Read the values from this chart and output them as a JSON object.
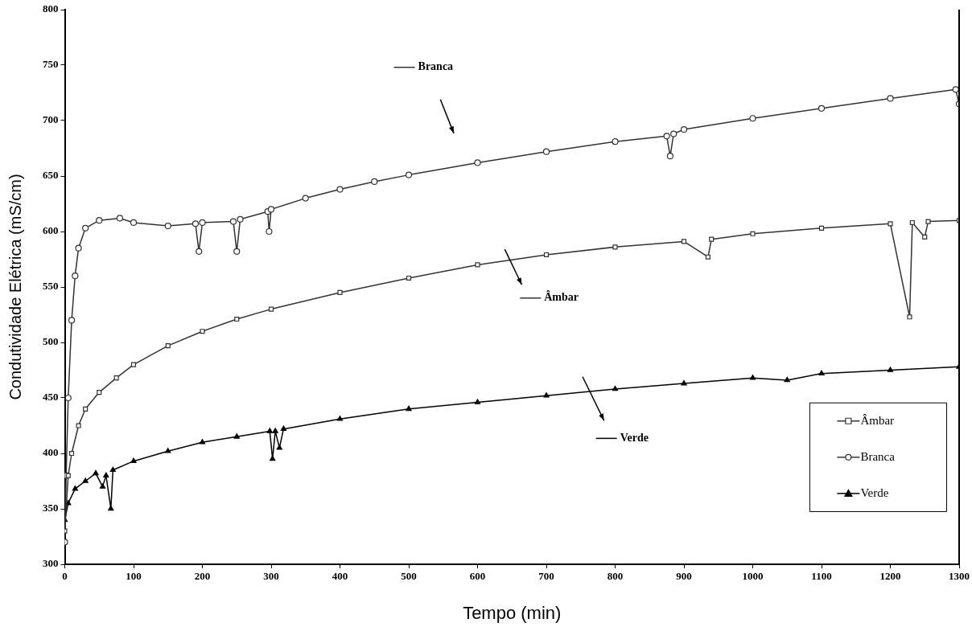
{
  "chart_data": {
    "type": "line",
    "xlabel": "Tempo (min)",
    "ylabel": "Condutividade Elétrica (mS/cm)",
    "xlim": [
      0,
      1300
    ],
    "xticks": [
      0,
      100,
      200,
      300,
      400,
      500,
      600,
      700,
      800,
      900,
      1000,
      1100,
      1200,
      1300
    ],
    "ylim": [
      300,
      800
    ],
    "yticks": [
      300,
      350,
      400,
      450,
      500,
      550,
      600,
      650,
      700,
      750,
      800
    ],
    "grid": false,
    "legend": "bottom right",
    "line_style": "solid",
    "series": [
      {
        "name": "Âmbar",
        "color": "#333333",
        "marker": "square",
        "x": [
          0,
          5,
          10,
          20,
          30,
          50,
          75,
          100,
          150,
          200,
          250,
          300,
          400,
          500,
          600,
          700,
          800,
          900,
          935,
          940,
          1000,
          1100,
          1200,
          1228,
          1232,
          1250,
          1255,
          1300
        ],
        "values": [
          330,
          380,
          400,
          425,
          440,
          455,
          468,
          480,
          497,
          510,
          521,
          530,
          545,
          558,
          570,
          579,
          586,
          591,
          577,
          593,
          598,
          603,
          607,
          523,
          608,
          595,
          609,
          610
        ]
      },
      {
        "name": "Branca",
        "color": "#333333",
        "marker": "circle",
        "x": [
          0,
          2,
          5,
          10,
          15,
          20,
          30,
          50,
          80,
          100,
          150,
          190,
          195,
          200,
          245,
          250,
          255,
          295,
          297,
          300,
          350,
          400,
          450,
          500,
          600,
          700,
          800,
          875,
          880,
          885,
          900,
          1000,
          1100,
          1200,
          1295,
          1300
        ],
        "values": [
          320,
          380,
          450,
          520,
          560,
          585,
          603,
          610,
          612,
          608,
          605,
          607,
          582,
          608,
          609,
          582,
          611,
          618,
          600,
          620,
          630,
          638,
          645,
          651,
          662,
          672,
          681,
          686,
          668,
          688,
          692,
          702,
          711,
          720,
          728,
          715
        ]
      },
      {
        "name": "Verde",
        "color": "#000000",
        "marker": "triangle",
        "x": [
          0,
          5,
          15,
          30,
          45,
          55,
          60,
          67,
          70,
          100,
          150,
          200,
          250,
          298,
          302,
          306,
          312,
          318,
          400,
          500,
          600,
          700,
          800,
          900,
          1000,
          1050,
          1100,
          1200,
          1300
        ],
        "values": [
          340,
          355,
          368,
          375,
          382,
          370,
          380,
          350,
          385,
          393,
          402,
          410,
          415,
          420,
          395,
          420,
          405,
          422,
          431,
          440,
          446,
          452,
          458,
          463,
          468,
          466,
          472,
          475,
          478
        ]
      }
    ],
    "annotations": [
      "Branca",
      "Âmbar",
      "Verde"
    ]
  }
}
